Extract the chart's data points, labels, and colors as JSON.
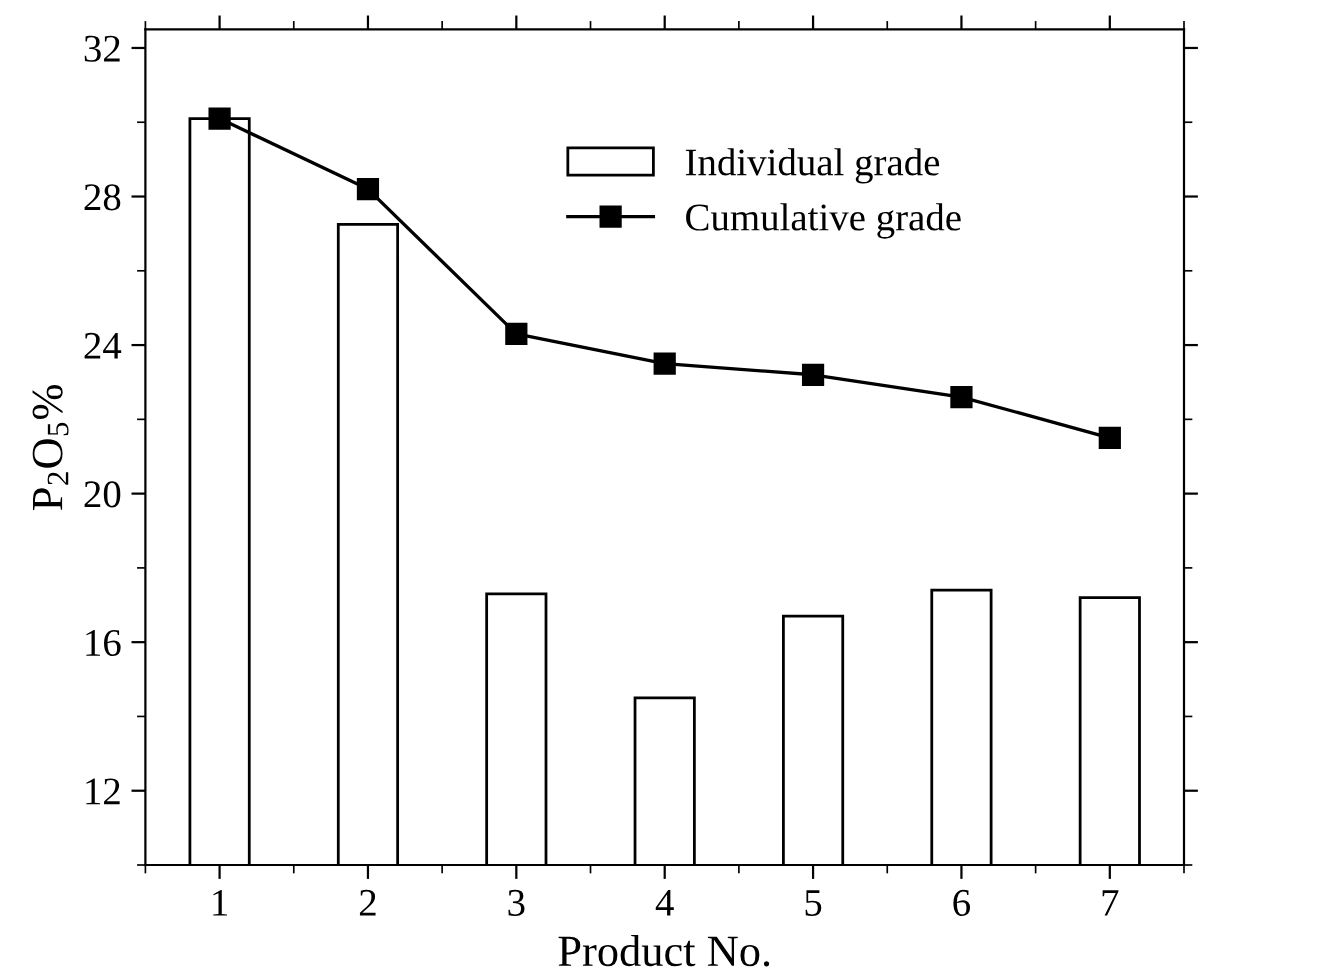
{
  "chart_data": {
    "type": "bar",
    "xlabel": "Product No.",
    "ylabel": "P$_{2}$O$_{5}$%",
    "x": [
      1,
      2,
      3,
      4,
      5,
      6,
      7
    ],
    "series": [
      {
        "name": "Individual grade",
        "color": "#ffffff",
        "values": [
          30.1,
          27.25,
          17.3,
          14.5,
          16.7,
          17.4,
          17.2
        ]
      },
      {
        "name": "Cumulative grade",
        "type": "line",
        "color": "#000000",
        "marker": "square",
        "line_style": "solid",
        "values": [
          30.1,
          28.2,
          24.3,
          23.5,
          23.2,
          22.6,
          21.5
        ]
      }
    ],
    "xlim": [
      0.5,
      7.5
    ],
    "xticks": [
      1,
      2,
      3,
      4,
      5,
      6,
      7
    ],
    "ylim": [
      10,
      32.5
    ],
    "yticks": [
      12,
      16,
      20,
      24,
      28,
      32
    ],
    "grid": false,
    "legend": "top right",
    "tick_labels": "xy"
  }
}
